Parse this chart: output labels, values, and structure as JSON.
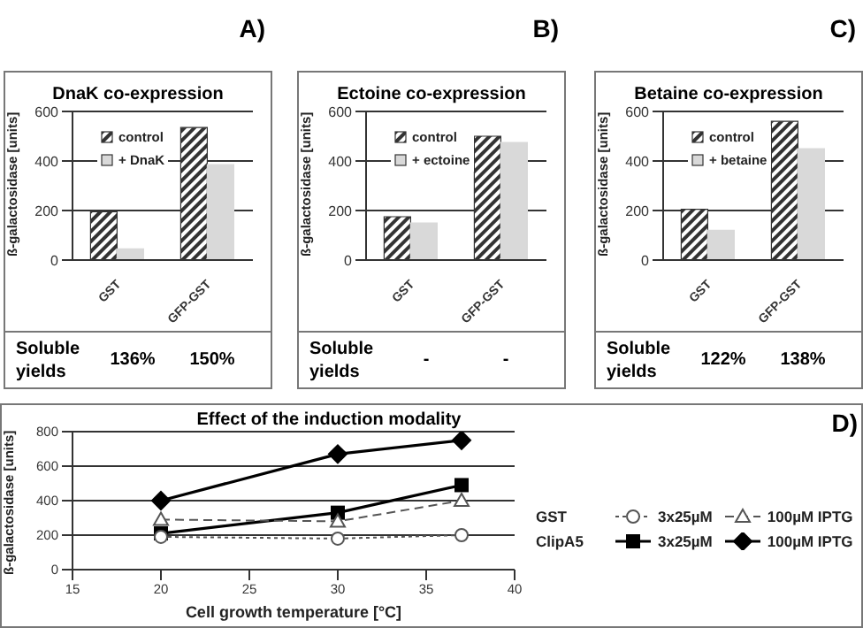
{
  "chart_data": [
    {
      "type": "bar",
      "title": "DnaK co-expression",
      "ylabel": "ß-galactosidase [units]",
      "categories": [
        "GST",
        "GFP-GST"
      ],
      "series": [
        {
          "name": "control",
          "color": "#333333",
          "values": [
            195,
            535
          ]
        },
        {
          "name": "+ DnaK",
          "color": "#d9d9d9",
          "values": [
            45,
            385
          ]
        }
      ],
      "ylim": [
        0,
        600
      ],
      "yticks": [
        0,
        200,
        400,
        600
      ],
      "grid": "y",
      "legend": "top left",
      "annotations": [
        "A)",
        "Soluble yields",
        "136%",
        "150%"
      ]
    },
    {
      "type": "bar",
      "title": "Ectoine co-expression",
      "ylabel": "ß-galactosidase [units]",
      "categories": [
        "GST",
        "GFP-GST"
      ],
      "series": [
        {
          "name": "control",
          "color": "#333333",
          "values": [
            175,
            500
          ]
        },
        {
          "name": "+ ectoine",
          "color": "#d9d9d9",
          "values": [
            150,
            475
          ]
        }
      ],
      "ylim": [
        0,
        600
      ],
      "yticks": [
        0,
        200,
        400,
        600
      ],
      "grid": "y",
      "legend": "top left",
      "annotations": [
        "B)",
        "Soluble yields",
        "-",
        "-"
      ]
    },
    {
      "type": "bar",
      "title": "Betaine co-expression",
      "ylabel": "ß-galactosidase [units]",
      "categories": [
        "GST",
        "GFP-GST"
      ],
      "series": [
        {
          "name": "control",
          "color": "#333333",
          "values": [
            205,
            560
          ]
        },
        {
          "name": "+ betaine",
          "color": "#d9d9d9",
          "values": [
            120,
            450
          ]
        }
      ],
      "ylim": [
        0,
        600
      ],
      "yticks": [
        0,
        200,
        400,
        600
      ],
      "grid": "y",
      "legend": "top left",
      "annotations": [
        "C)",
        "Soluble yields",
        "122%",
        "138%"
      ]
    },
    {
      "type": "line",
      "title": "Effect of the induction modality",
      "xlabel": "Cell growth temperature [°C]",
      "ylabel": "ß-galactosidase [units]",
      "x": [
        20,
        30,
        37
      ],
      "series": [
        {
          "name": "3x25µM",
          "color": "#555555",
          "values": [
            190,
            180,
            200
          ],
          "marker": "circle",
          "line_style": "dotted"
        },
        {
          "name": "100µM IPTG",
          "color": "#555555",
          "values": [
            290,
            280,
            400
          ],
          "marker": "triangle",
          "line_style": "dashed"
        },
        {
          "name": "3x25µM",
          "color": "#000000",
          "values": [
            210,
            330,
            490
          ],
          "marker": "square",
          "line_style": "solid"
        },
        {
          "name": "100µM IPTG",
          "color": "#000000",
          "values": [
            400,
            670,
            750
          ],
          "marker": "diamond",
          "line_style": "solid"
        }
      ],
      "xlim": [
        15,
        40
      ],
      "xticks": [
        15,
        20,
        25,
        30,
        35,
        40
      ],
      "ylim": [
        0,
        800
      ],
      "yticks": [
        0,
        200,
        400,
        600,
        800
      ],
      "grid": "y",
      "legend": "right",
      "annotations": [
        "D)",
        "GST",
        "ClipA5"
      ]
    }
  ]
}
